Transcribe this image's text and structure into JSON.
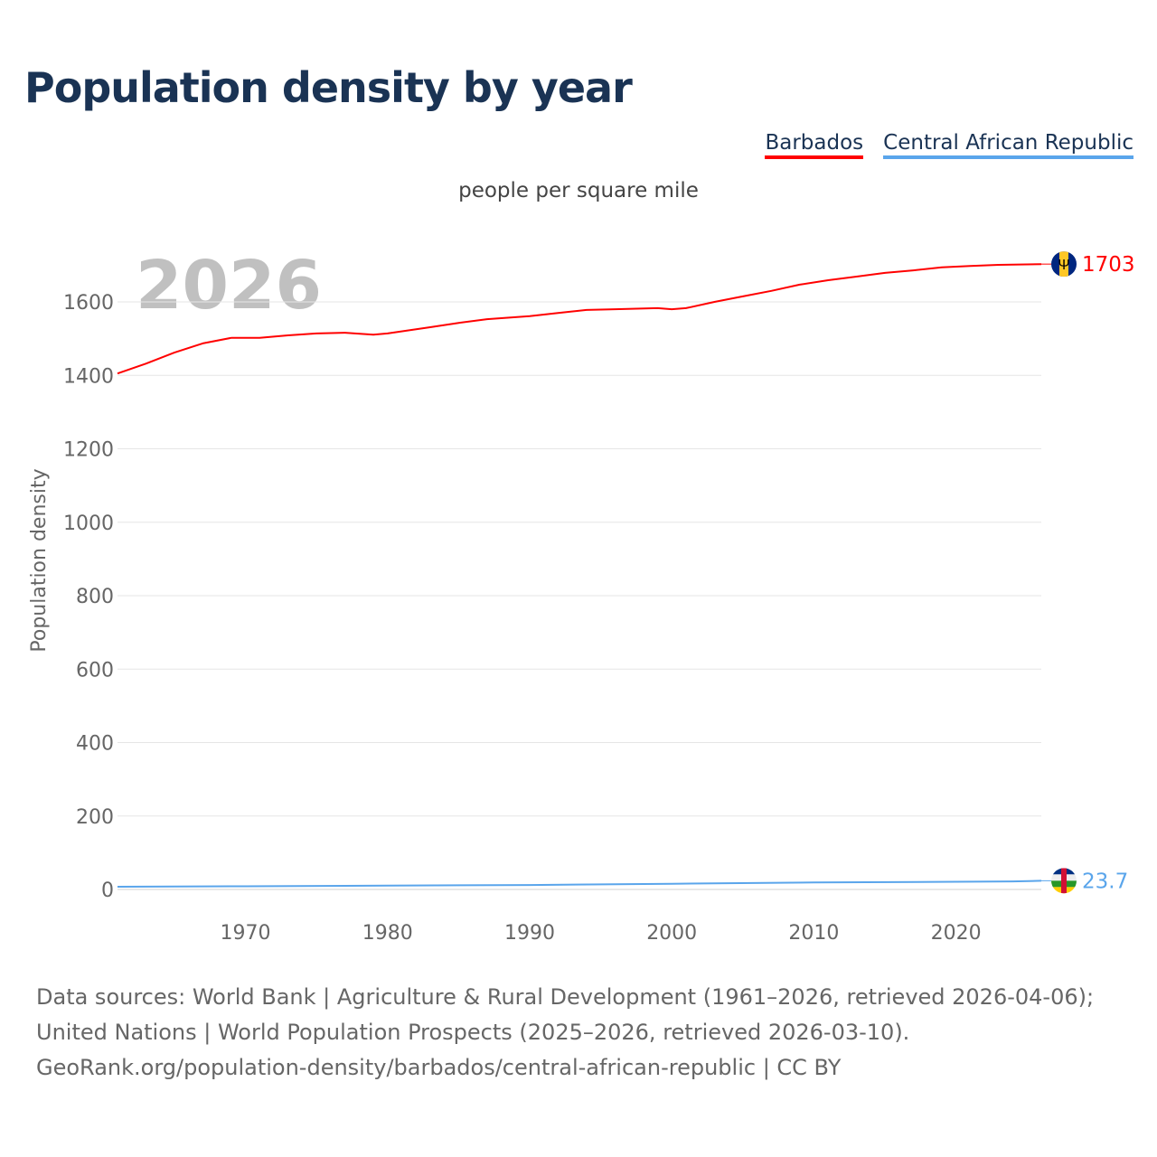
{
  "title": "Population density by year",
  "colors": {
    "barbados": "#ff0000",
    "car": "#5aa5eb",
    "grid": "#e6e6e6",
    "axis_text": "#666666",
    "year_watermark": "#c0c0c0"
  },
  "chart_data": {
    "type": "line",
    "subtitle": "people per square mile",
    "ylabel": "Population density",
    "xlabel": "",
    "current_year_label": "2026",
    "xlim": [
      1961,
      2026
    ],
    "ylim": [
      0,
      1750
    ],
    "x_ticks": [
      1970,
      1980,
      1990,
      2000,
      2010,
      2020
    ],
    "y_ticks": [
      0,
      200,
      400,
      600,
      800,
      1000,
      1200,
      1400,
      1600
    ],
    "grid": true,
    "legend_position": "top-right",
    "series": [
      {
        "name": "Barbados",
        "color": "#ff0000",
        "end_label": "1703",
        "flag": "barbados-flag",
        "x": [
          1961,
          1963,
          1965,
          1967,
          1969,
          1971,
          1973,
          1975,
          1977,
          1979,
          1980,
          1983,
          1985,
          1987,
          1990,
          1992,
          1994,
          1996,
          1999,
          2000,
          2001,
          2003,
          2005,
          2007,
          2009,
          2011,
          2013,
          2015,
          2017,
          2019,
          2021,
          2023,
          2026
        ],
        "y": [
          1405,
          1432,
          1462,
          1487,
          1502,
          1502,
          1509,
          1514,
          1516,
          1511,
          1514,
          1531,
          1543,
          1553,
          1561,
          1570,
          1578,
          1580,
          1583,
          1580,
          1583,
          1600,
          1615,
          1630,
          1647,
          1659,
          1669,
          1679,
          1686,
          1694,
          1698,
          1701,
          1703
        ]
      },
      {
        "name": "Central African Republic",
        "color": "#5aa5eb",
        "end_label": "23.7",
        "flag": "central-african-republic-flag",
        "x": [
          1961,
          1970,
          1980,
          1990,
          2000,
          2010,
          2020,
          2024,
          2026
        ],
        "y": [
          7.5,
          8.5,
          10.5,
          12,
          15.5,
          19,
          21,
          22,
          23.7
        ]
      }
    ]
  },
  "footer": {
    "line1": "Data sources: World Bank | Agriculture & Rural Development (1961–2026, retrieved 2026-04-06); United Nations | World Population Prospects (2025–2026, retrieved 2026-03-10).",
    "line2": "GeoRank.org/population-density/barbados/central-african-republic | CC BY"
  }
}
